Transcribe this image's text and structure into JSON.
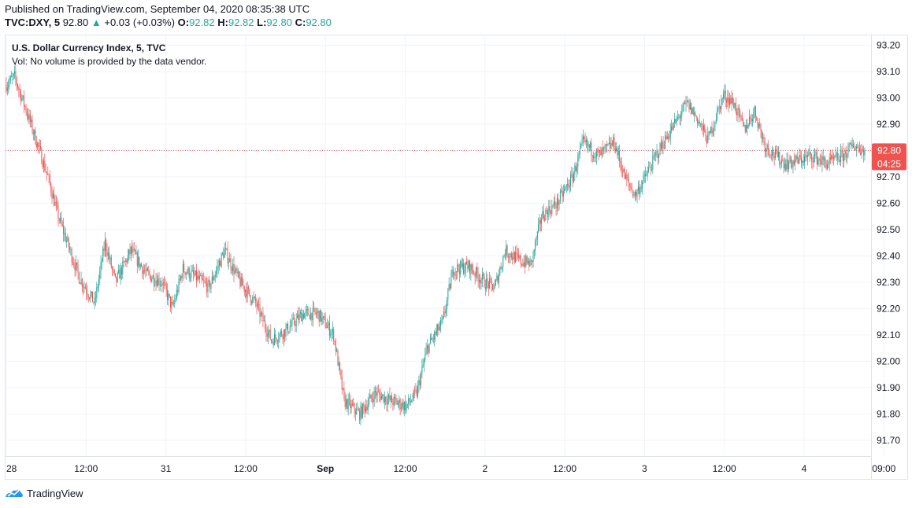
{
  "header": {
    "published_line": "Published on TradingView.com, September 04, 2020 08:35:38 UTC",
    "symbol_line": "TVC:DXY, 5",
    "price": "92.80",
    "change": "+0.03 (+0.03%)",
    "change_arrow": "▲",
    "open_label": "O:",
    "open": "92.82",
    "high_label": "H:",
    "high": "92.82",
    "low_label": "L:",
    "low": "92.80",
    "close_label": "C:",
    "close": "92.80"
  },
  "legend": {
    "title": "U.S. Dollar Currency Index, 5, TVC",
    "volume_note": "Vol: No volume is provided by the data vendor."
  },
  "price_badge": {
    "value": "92.80",
    "countdown": "04:25"
  },
  "footer": {
    "brand": "TradingView"
  },
  "colors": {
    "up": "#26a69a",
    "down": "#ef5350",
    "grid": "#f0f3fa",
    "badge": "#ef5350"
  },
  "chart_data": {
    "type": "candlestick",
    "timeframe": "5",
    "ylim": [
      91.64,
      93.24
    ],
    "y_ticks": [
      "93.20",
      "93.10",
      "93.00",
      "92.90",
      "92.80",
      "92.70",
      "92.60",
      "92.50",
      "92.40",
      "92.30",
      "92.20",
      "92.10",
      "92.00",
      "91.90",
      "91.80",
      "91.70"
    ],
    "x_ticks": [
      "28",
      "12:00",
      "31",
      "12:00",
      "Sep",
      "12:00",
      "2",
      "12:00",
      "3",
      "12:00",
      "4",
      "09:00"
    ],
    "last_price": 92.8,
    "path_keypoints": [
      {
        "i": 0,
        "v": 93.05
      },
      {
        "i": 8,
        "v": 93.08
      },
      {
        "i": 22,
        "v": 92.92
      },
      {
        "i": 40,
        "v": 92.7
      },
      {
        "i": 50,
        "v": 92.55
      },
      {
        "i": 70,
        "v": 92.32
      },
      {
        "i": 85,
        "v": 92.22
      },
      {
        "i": 95,
        "v": 92.45
      },
      {
        "i": 105,
        "v": 92.3
      },
      {
        "i": 120,
        "v": 92.42
      },
      {
        "i": 135,
        "v": 92.33
      },
      {
        "i": 150,
        "v": 92.3
      },
      {
        "i": 160,
        "v": 92.2
      },
      {
        "i": 170,
        "v": 92.35
      },
      {
        "i": 182,
        "v": 92.32
      },
      {
        "i": 195,
        "v": 92.28
      },
      {
        "i": 210,
        "v": 92.42
      },
      {
        "i": 225,
        "v": 92.3
      },
      {
        "i": 240,
        "v": 92.22
      },
      {
        "i": 255,
        "v": 92.08
      },
      {
        "i": 270,
        "v": 92.12
      },
      {
        "i": 285,
        "v": 92.18
      },
      {
        "i": 300,
        "v": 92.18
      },
      {
        "i": 315,
        "v": 92.1
      },
      {
        "i": 325,
        "v": 91.85
      },
      {
        "i": 340,
        "v": 91.8
      },
      {
        "i": 355,
        "v": 91.88
      },
      {
        "i": 370,
        "v": 91.85
      },
      {
        "i": 385,
        "v": 91.83
      },
      {
        "i": 395,
        "v": 91.88
      },
      {
        "i": 405,
        "v": 92.05
      },
      {
        "i": 420,
        "v": 92.15
      },
      {
        "i": 430,
        "v": 92.35
      },
      {
        "i": 445,
        "v": 92.36
      },
      {
        "i": 460,
        "v": 92.3
      },
      {
        "i": 470,
        "v": 92.28
      },
      {
        "i": 480,
        "v": 92.42
      },
      {
        "i": 495,
        "v": 92.38
      },
      {
        "i": 505,
        "v": 92.37
      },
      {
        "i": 515,
        "v": 92.55
      },
      {
        "i": 530,
        "v": 92.6
      },
      {
        "i": 545,
        "v": 92.7
      },
      {
        "i": 555,
        "v": 92.83
      },
      {
        "i": 570,
        "v": 92.78
      },
      {
        "i": 585,
        "v": 92.83
      },
      {
        "i": 595,
        "v": 92.7
      },
      {
        "i": 605,
        "v": 92.63
      },
      {
        "i": 615,
        "v": 92.7
      },
      {
        "i": 625,
        "v": 92.78
      },
      {
        "i": 640,
        "v": 92.88
      },
      {
        "i": 655,
        "v": 92.98
      },
      {
        "i": 665,
        "v": 92.92
      },
      {
        "i": 675,
        "v": 92.84
      },
      {
        "i": 690,
        "v": 93.01
      },
      {
        "i": 700,
        "v": 92.98
      },
      {
        "i": 710,
        "v": 92.88
      },
      {
        "i": 720,
        "v": 92.95
      },
      {
        "i": 730,
        "v": 92.82
      },
      {
        "i": 740,
        "v": 92.78
      },
      {
        "i": 750,
        "v": 92.75
      },
      {
        "i": 760,
        "v": 92.76
      },
      {
        "i": 775,
        "v": 92.78
      },
      {
        "i": 790,
        "v": 92.75
      },
      {
        "i": 805,
        "v": 92.78
      },
      {
        "i": 815,
        "v": 92.82
      },
      {
        "i": 826,
        "v": 92.8
      }
    ]
  }
}
